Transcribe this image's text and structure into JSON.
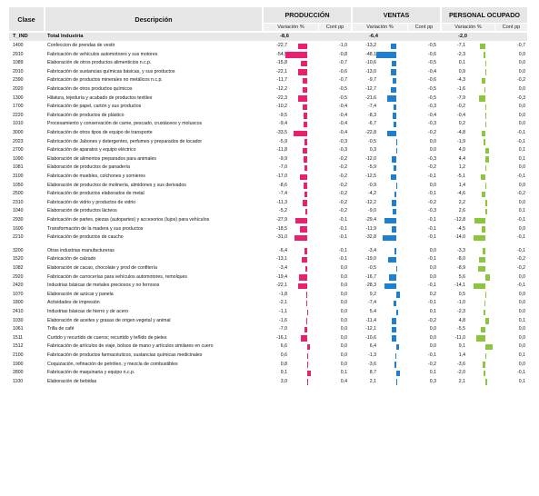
{
  "headers": {
    "clase": "Clase",
    "descripcion": "Descripción",
    "produccion": "PRODUCCIÓN",
    "ventas": "VENTAS",
    "personal": "PERSONAL OCUPADO",
    "variacion": "Variación %",
    "cont": "Cont pp"
  },
  "colors": {
    "produccion": "#e8206e",
    "ventas": "#1f7fcf",
    "personal": "#8cc63f"
  },
  "total": {
    "clase": "T_IND",
    "desc": "Total Industria",
    "p_var": "-8,6",
    "p_cont": "",
    "v_var": "-6,4",
    "v_cont": "",
    "e_var": "-2,0",
    "e_cont": ""
  },
  "rows": [
    [
      "1400",
      "Confeccion de prendas de vestir",
      "-22,7",
      "-1,0",
      "-13,2",
      "-0,5",
      "-7,1",
      "-0,7"
    ],
    [
      "2910",
      "Fabricación de vehículos automotores y sus motores",
      "-54,5",
      "-0,8",
      "-48,1",
      "-0,6",
      "-2,3",
      "0,0"
    ],
    [
      "1089",
      "Elaboración de otros productos alimenticios n.c.p.",
      "-15,8",
      "-0,7",
      "-10,6",
      "-0,5",
      "0,1",
      "0,0"
    ],
    [
      "2010",
      "Fabricación de sustancias químicas básicas, y sus productos",
      "-22,1",
      "-0,6",
      "-13,0",
      "-0,4",
      "0,9",
      "0,0"
    ],
    [
      "2390",
      "Fabricación de productos minerales no metálicos n.c.p.",
      "-11,7",
      "-0,7",
      "-9,7",
      "-0,6",
      "-4,3",
      "-0,2"
    ],
    [
      "2020",
      "Fabricación de otros productos químicos",
      "-12,2",
      "-0,5",
      "-12,7",
      "-0,5",
      "-1,6",
      "0,0"
    ],
    [
      "1300",
      "Hilatura, tejeduría y acabado de productos textiles",
      "-22,3",
      "-0,5",
      "-21,6",
      "-0,5",
      "-7,9",
      "-0,3"
    ],
    [
      "1700",
      "Fabricación de papel, cartón y sus productos",
      "-10,2",
      "-0,4",
      "-7,4",
      "-0,3",
      "-0,2",
      "0,0"
    ],
    [
      "2220",
      "Fabricación de productos de plástico",
      "-9,5",
      "-0,4",
      "-8,3",
      "-0,4",
      "-0,4",
      "0,0"
    ],
    [
      "1010",
      "Procesamiento y conservación de carne, pescado, crustáceos y moluscos",
      "-9,4",
      "-0,4",
      "-6,7",
      "-0,3",
      "0,2",
      "0,0"
    ],
    [
      "3000",
      "Fabricación de otros tipos de equipo de transporte",
      "-33,5",
      "-0,4",
      "-22,8",
      "-0,2",
      "-4,8",
      "-0,1"
    ],
    [
      "2023",
      "Fabricación de Jabones y detergentes, perfumes y preparados de tocador",
      "-5,9",
      "-0,3",
      "-0,5",
      "0,0",
      "-1,9",
      "-0,1"
    ],
    [
      "2700",
      "Fabricación de aparatos y equipo eléctrico",
      "-11,8",
      "-0,3",
      "0,3",
      "0,0",
      "4,0",
      "0,1"
    ],
    [
      "1090",
      "Elaboración de alimentos preparados para animales",
      "-9,9",
      "-0,2",
      "-12,0",
      "-0,3",
      "4,4",
      "0,1"
    ],
    [
      "1081",
      "Elaboración de productos de panadería",
      "-7,0",
      "-0,2",
      "-5,9",
      "-0,2",
      "1,2",
      "0,0"
    ],
    [
      "3100",
      "Fabricación de muebles, colchones y somieres",
      "-17,0",
      "-0,2",
      "-12,5",
      "-0,1",
      "-5,1",
      "-0,1"
    ],
    [
      "1050",
      "Elaboración de productos de molinería, almidones y sus derivados",
      "-8,6",
      "-0,2",
      "-0,9",
      "0,0",
      "1,4",
      "0,0"
    ],
    [
      "2500",
      "Fabricación de productos elaborados de metal",
      "-7,4",
      "-0,2",
      "-4,2",
      "-0,1",
      "-4,6",
      "-0,2"
    ],
    [
      "2310",
      "Fabricación de vidrio y productos de vidrio",
      "-11,3",
      "-0,2",
      "-12,2",
      "-0,2",
      "2,2",
      "0,0"
    ],
    [
      "1040",
      "Elaboración de productos lácteos",
      "-5,2",
      "-0,2",
      "-9,0",
      "-0,3",
      "2,6",
      "0,1"
    ],
    [
      "2930",
      "Fabricación de partes, piezas (autopartes) y accesorios (lujos) para vehículos",
      "-27,9",
      "-0,1",
      "-29,4",
      "-0,1",
      "-12,8",
      "-0,1"
    ],
    [
      "1600",
      "Transformación de la madera y sus productos",
      "-18,5",
      "-0,1",
      "-11,9",
      "-0,1",
      "-4,5",
      "0,0"
    ],
    [
      "2210",
      "Fabricación de productos de caucho",
      "-31,0",
      "-0,1",
      "-32,8",
      "-0,1",
      "-14,0",
      "-0,1"
    ],
    [
      "3200",
      "Otras industrias manufactureras",
      "-6,4",
      "-0,1",
      "-3,4",
      "0,0",
      "-3,3",
      "-0,1"
    ],
    [
      "1520",
      "Fabricación de calzado",
      "-13,1",
      "-0,1",
      "-19,0",
      "-0,1",
      "-8,0",
      "-0,2"
    ],
    [
      "1082",
      "Elaboración de cacao, chocolate y prod de confitería",
      "-3,4",
      "0,0",
      "-0,5",
      "0,0",
      "-8,9",
      "-0,2"
    ],
    [
      "2920",
      "Fabricación de carrocerías para vehículos automotores, remolques",
      "-19,4",
      "0,0",
      "-16,7",
      "0,0",
      "5,6",
      "0,0"
    ],
    [
      "2420",
      "Industrias básicas de metales preciosos y no ferrosos",
      "-22,1",
      "0,0",
      "-28,3",
      "-0,1",
      "-14,1",
      "-0,1"
    ],
    [
      "1070",
      "Elaboración de azúcar y panela",
      "-1,8",
      "0,0",
      "9,2",
      "0,2",
      "0,5",
      "0,0"
    ],
    [
      "1800",
      "Actividades de impresión",
      "-2,1",
      "0,0",
      "-7,4",
      "-0,1",
      "-1,0",
      "0,0"
    ],
    [
      "2410",
      "Industrias básicas de hierro y de acero",
      "-1,1",
      "0,0",
      "5,4",
      "0,1",
      "-2,3",
      "0,0"
    ],
    [
      "1030",
      "Elaboración de aceites y grasas de origen vegetal y animal",
      "-1,6",
      "0,0",
      "-11,4",
      "-0,2",
      "4,8",
      "0,1"
    ],
    [
      "1061",
      "Trilla de café",
      "-7,0",
      "0,0",
      "-12,1",
      "0,0",
      "-5,5",
      "0,0"
    ],
    [
      "1511",
      "Curtido y recurtido de cueros; recurtido y teñido de pieles",
      "-16,1",
      "0,0",
      "-10,6",
      "0,0",
      "-11,0",
      "0,0"
    ],
    [
      "1512",
      "Fabricación de artículos de viaje, bolsos de mano y artículos similares en cuero",
      "6,6",
      "0,0",
      "6,4",
      "0,0",
      "9,1",
      "0,0"
    ],
    [
      "2100",
      "Fabricación de productos farmacéuticos, sustancias químicas medicinales",
      "0,6",
      "0,0",
      "-1,3",
      "-0,1",
      "1,4",
      "0,1"
    ],
    [
      "1900",
      "Coquización, refinación de petróleo, y mezcla de combustibles",
      "0,8",
      "0,0",
      "-3,6",
      "-0,2",
      "-3,6",
      "0,0"
    ],
    [
      "2800",
      "Fabricación de maquinaria y equipo n.c.p.",
      "9,1",
      "0,1",
      "8,7",
      "0,1",
      "-2,0",
      "-0,1"
    ],
    [
      "1100",
      "Elaboración de bebidas",
      "3,0",
      "0,4",
      "2,1",
      "0,3",
      "2,1",
      "0,1"
    ]
  ]
}
